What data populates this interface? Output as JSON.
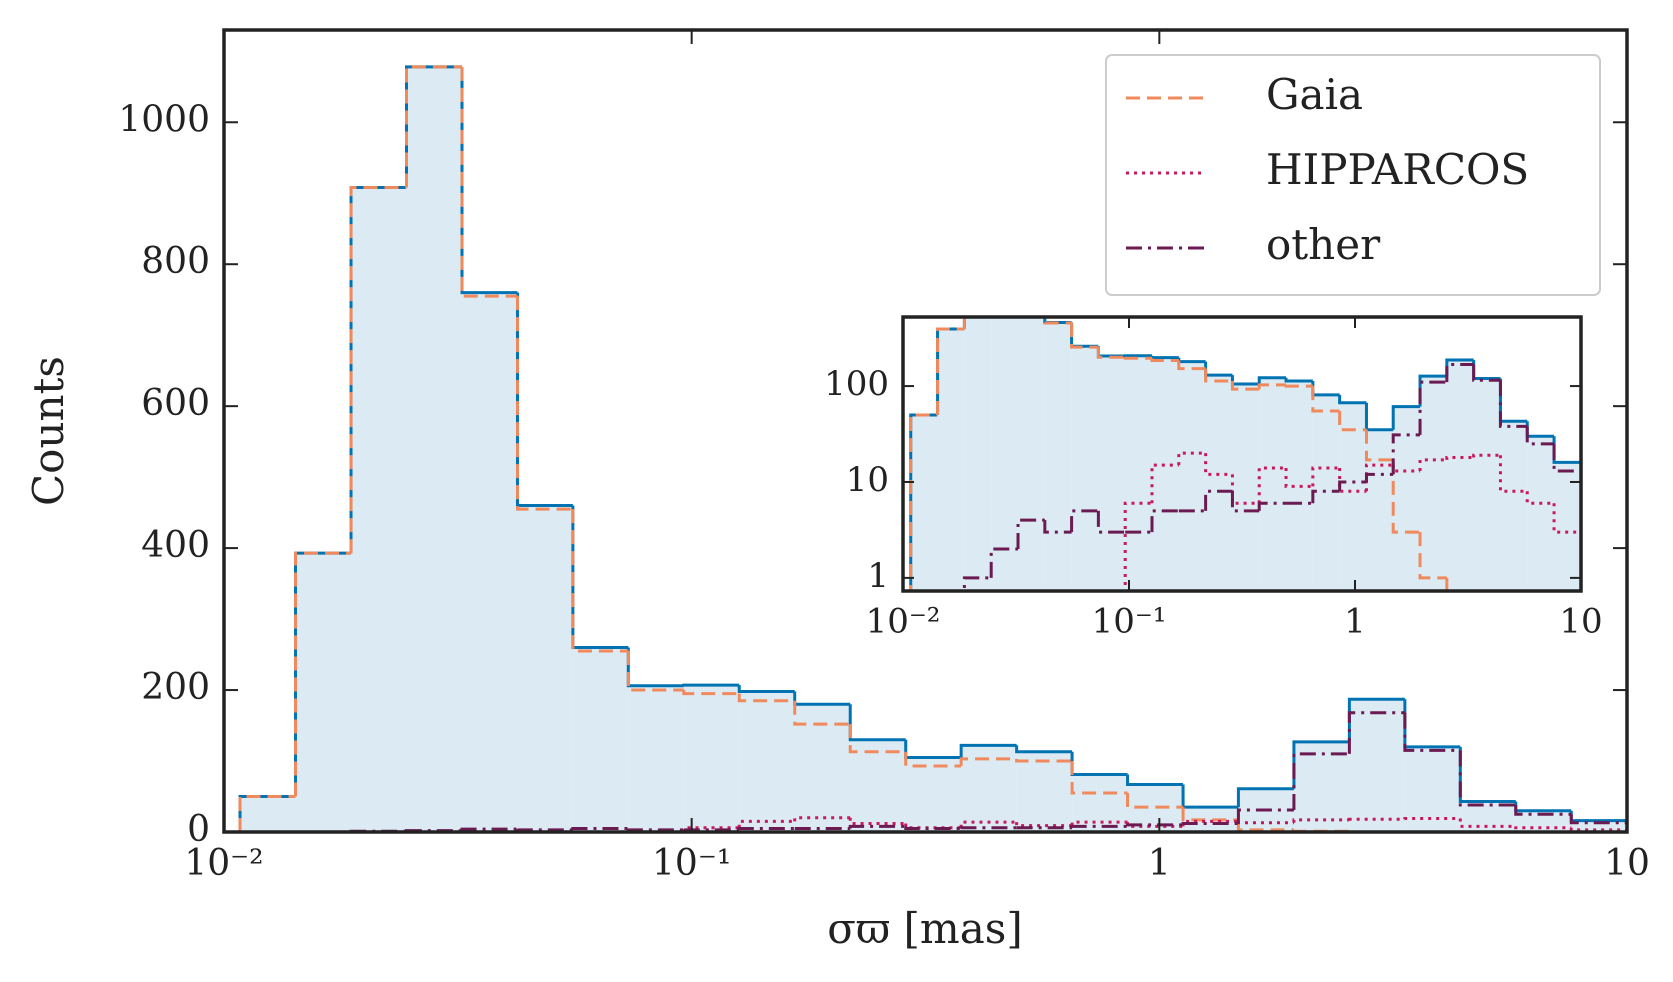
{
  "chart_data": [
    {
      "type": "histogram",
      "xlabel": "σϖ [mas]",
      "ylabel": "Counts",
      "bins": [
        0.01082,
        0.01422,
        0.01869,
        0.02456,
        0.03228,
        0.04242,
        0.05572,
        0.0732,
        0.0962,
        0.1264,
        0.1661,
        0.2183,
        0.2869,
        0.3769,
        0.4953,
        0.6508,
        0.8551,
        1.124,
        1.476,
        1.94,
        2.549,
        3.35,
        4.401,
        5.783,
        7.6,
        10
      ],
      "values": [
        50,
        393,
        908,
        1078,
        760,
        460,
        260,
        206,
        207,
        198,
        180,
        130,
        105,
        122,
        113,
        81,
        67,
        35,
        61,
        127,
        187,
        120,
        43,
        30,
        16
      ],
      "color": "#0173b2",
      "fill_color": "#dbeaf3",
      "series": [
        {
          "name": "Gaia",
          "color": "#f08a5d",
          "linestyle": "dashed",
          "values": [
            50,
            393,
            908,
            1078,
            755,
            455,
            255,
            200,
            195,
            185,
            152,
            113,
            93,
            103,
            100,
            55,
            35,
            17,
            3,
            1,
            0,
            0,
            0,
            0,
            0
          ]
        },
        {
          "name": "HIPPARCOS",
          "color": "#c9185b",
          "linestyle": "dotted",
          "values": [
            0,
            0,
            0,
            0,
            0,
            0,
            0,
            0,
            6,
            15,
            20,
            12,
            6,
            14,
            9,
            14,
            8,
            15,
            13,
            17,
            18,
            19,
            8,
            6,
            3
          ]
        },
        {
          "name": "other",
          "color": "#6b1a52",
          "linestyle": "dashdot",
          "values": [
            0,
            0,
            1,
            2,
            4,
            3,
            5,
            3,
            3,
            5,
            5,
            8,
            5,
            6,
            6,
            8,
            10,
            12,
            31,
            110,
            168,
            115,
            38,
            25,
            13
          ]
        }
      ],
      "xlog": true,
      "xlim": [
        0.01,
        10
      ],
      "ylim": [
        0,
        1130
      ],
      "xticks": [
        {
          "value": 0.01,
          "label": "10⁻²"
        },
        {
          "value": 0.1,
          "label": "10⁻¹"
        },
        1,
        10
      ],
      "yticks": [
        0,
        200,
        400,
        600,
        800,
        1000
      ],
      "legend": "upper right"
    },
    {
      "type": "histogram",
      "xlog": true,
      "ylog": true,
      "xlim": [
        0.01,
        10
      ],
      "ylim": [
        0.73,
        525
      ],
      "xticks": [
        {
          "value": 0.01,
          "label": "10⁻²"
        },
        {
          "value": 0.1,
          "label": "10⁻¹"
        },
        1,
        10
      ],
      "yticks": [
        1,
        10,
        100
      ]
    }
  ]
}
